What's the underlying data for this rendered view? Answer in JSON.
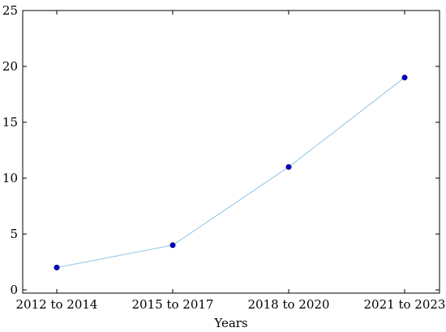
{
  "chart_data": {
    "type": "line",
    "title": "",
    "xlabel": "Years",
    "ylabel": "",
    "categories": [
      "2012 to 2014",
      "2015 to 2017",
      "2018 to 2020",
      "2021 to 2023"
    ],
    "series": [
      {
        "values": [
          2,
          4,
          11,
          19
        ],
        "line_color": "#8fc4e8",
        "marker_color": "#0000cc"
      }
    ],
    "ylim": [
      0,
      25
    ],
    "y_ticks": [
      0,
      5,
      10,
      15,
      20,
      25
    ],
    "grid": false,
    "legend": "none"
  }
}
